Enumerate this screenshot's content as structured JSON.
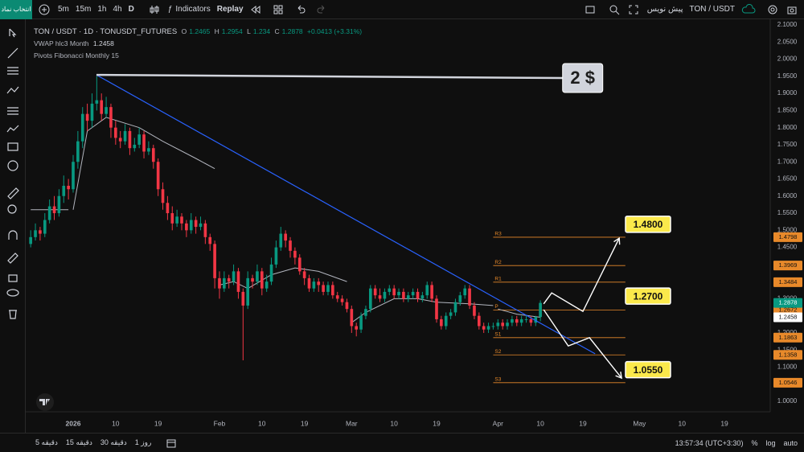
{
  "toolbar": {
    "symbol_button": "انتخاب نماد",
    "intervals": [
      "5m",
      "15m",
      "1h",
      "4h",
      "D"
    ],
    "indicators": "Indicators",
    "replay": "Replay",
    "symbol": "TON / USDT",
    "draft": "پیش نویس"
  },
  "bottom_bar": {
    "intervals": [
      "5 دقیقه",
      "15 دقیقه",
      "30 دقیقه",
      "1 روز"
    ],
    "clock": "13:57:34 (UTC+3:30)",
    "percent": "%",
    "log": "log",
    "auto": "auto"
  },
  "chart_data": {
    "type": "candlestick",
    "title": "TON / USDT · 1D · TONUSDT_FUTURES",
    "ohlc_keys": [
      "O",
      "H",
      "L",
      "C"
    ],
    "change": "+0.0413 (+3.31%)",
    "up_color": "#089981",
    "down_color": "#f23645",
    "candles": [
      [
        -9,
        1.46,
        1.5,
        1.45,
        1.48
      ],
      [
        -8,
        1.48,
        1.52,
        1.47,
        1.5
      ],
      [
        -7,
        1.5,
        1.51,
        1.47,
        1.49
      ],
      [
        -6,
        1.49,
        1.55,
        1.48,
        1.53
      ],
      [
        -5,
        1.53,
        1.59,
        1.52,
        1.57
      ],
      [
        -4,
        1.57,
        1.6,
        1.53,
        1.55
      ],
      [
        -3,
        1.55,
        1.62,
        1.54,
        1.6
      ],
      [
        -2,
        1.6,
        1.66,
        1.58,
        1.63
      ],
      [
        -1,
        1.63,
        1.65,
        1.59,
        1.62
      ],
      [
        0,
        1.62,
        1.72,
        1.61,
        1.7
      ],
      [
        1,
        1.7,
        1.79,
        1.68,
        1.76
      ],
      [
        2,
        1.76,
        1.86,
        1.74,
        1.84
      ],
      [
        3,
        1.84,
        1.87,
        1.79,
        1.82
      ],
      [
        4,
        1.82,
        1.9,
        1.8,
        1.87
      ],
      [
        5,
        1.87,
        1.95,
        1.85,
        1.88
      ],
      [
        6,
        1.88,
        1.9,
        1.82,
        1.84
      ],
      [
        7,
        1.84,
        1.89,
        1.83,
        1.86
      ],
      [
        8,
        1.86,
        1.87,
        1.77,
        1.8
      ],
      [
        9,
        1.8,
        1.82,
        1.75,
        1.77
      ],
      [
        10,
        1.77,
        1.79,
        1.74,
        1.76
      ],
      [
        11,
        1.76,
        1.81,
        1.75,
        1.79
      ],
      [
        12,
        1.79,
        1.8,
        1.72,
        1.74
      ],
      [
        13,
        1.74,
        1.77,
        1.73,
        1.75
      ],
      [
        14,
        1.75,
        1.8,
        1.74,
        1.78
      ],
      [
        15,
        1.78,
        1.79,
        1.71,
        1.73
      ],
      [
        16,
        1.73,
        1.76,
        1.72,
        1.74
      ],
      [
        17,
        1.74,
        1.75,
        1.68,
        1.7
      ],
      [
        18,
        1.7,
        1.71,
        1.6,
        1.62
      ],
      [
        19,
        1.62,
        1.64,
        1.56,
        1.58
      ],
      [
        20,
        1.58,
        1.6,
        1.53,
        1.55
      ],
      [
        21,
        1.55,
        1.57,
        1.5,
        1.52
      ],
      [
        22,
        1.52,
        1.56,
        1.51,
        1.54
      ],
      [
        23,
        1.54,
        1.55,
        1.5,
        1.52
      ],
      [
        24,
        1.52,
        1.53,
        1.48,
        1.5
      ],
      [
        25,
        1.5,
        1.55,
        1.49,
        1.53
      ],
      [
        26,
        1.53,
        1.54,
        1.49,
        1.51
      ],
      [
        27,
        1.51,
        1.54,
        1.5,
        1.52
      ],
      [
        28,
        1.52,
        1.53,
        1.46,
        1.48
      ],
      [
        29,
        1.48,
        1.49,
        1.44,
        1.46
      ],
      [
        30,
        1.46,
        1.47,
        1.33,
        1.36
      ],
      [
        31,
        1.36,
        1.38,
        1.3,
        1.33
      ],
      [
        32,
        1.33,
        1.38,
        1.32,
        1.36
      ],
      [
        33,
        1.36,
        1.37,
        1.33,
        1.35
      ],
      [
        34,
        1.35,
        1.4,
        1.34,
        1.38
      ],
      [
        35,
        1.38,
        1.39,
        1.3,
        1.32
      ],
      [
        36,
        1.32,
        1.33,
        1.12,
        1.28
      ],
      [
        37,
        1.28,
        1.38,
        1.27,
        1.36
      ],
      [
        38,
        1.36,
        1.37,
        1.33,
        1.35
      ],
      [
        39,
        1.35,
        1.4,
        1.34,
        1.38
      ],
      [
        40,
        1.38,
        1.39,
        1.31,
        1.33
      ],
      [
        41,
        1.33,
        1.37,
        1.32,
        1.35
      ],
      [
        42,
        1.35,
        1.42,
        1.34,
        1.4
      ],
      [
        43,
        1.4,
        1.47,
        1.39,
        1.45
      ],
      [
        44,
        1.45,
        1.51,
        1.44,
        1.49
      ],
      [
        45,
        1.49,
        1.5,
        1.45,
        1.47
      ],
      [
        46,
        1.47,
        1.48,
        1.42,
        1.44
      ],
      [
        47,
        1.44,
        1.45,
        1.4,
        1.42
      ],
      [
        48,
        1.42,
        1.43,
        1.37,
        1.38
      ],
      [
        49,
        1.38,
        1.39,
        1.34,
        1.36
      ],
      [
        50,
        1.36,
        1.37,
        1.32,
        1.33
      ],
      [
        51,
        1.33,
        1.36,
        1.32,
        1.35
      ],
      [
        52,
        1.35,
        1.36,
        1.32,
        1.34
      ],
      [
        53,
        1.34,
        1.35,
        1.31,
        1.32
      ],
      [
        54,
        1.32,
        1.35,
        1.31,
        1.34
      ],
      [
        55,
        1.34,
        1.35,
        1.3,
        1.31
      ],
      [
        56,
        1.31,
        1.32,
        1.29,
        1.3
      ],
      [
        57,
        1.3,
        1.31,
        1.28,
        1.29
      ],
      [
        58,
        1.29,
        1.3,
        1.26,
        1.27
      ],
      [
        59,
        1.27,
        1.28,
        1.2,
        1.22
      ],
      [
        60,
        1.22,
        1.23,
        1.19,
        1.21
      ],
      [
        61,
        1.21,
        1.26,
        1.2,
        1.25
      ],
      [
        62,
        1.25,
        1.28,
        1.24,
        1.27
      ],
      [
        63,
        1.27,
        1.34,
        1.26,
        1.33
      ],
      [
        64,
        1.33,
        1.34,
        1.3,
        1.31
      ],
      [
        65,
        1.31,
        1.33,
        1.29,
        1.3
      ],
      [
        66,
        1.3,
        1.33,
        1.29,
        1.32
      ],
      [
        67,
        1.32,
        1.34,
        1.31,
        1.33
      ],
      [
        68,
        1.33,
        1.34,
        1.3,
        1.31
      ],
      [
        69,
        1.31,
        1.33,
        1.3,
        1.32
      ],
      [
        70,
        1.32,
        1.33,
        1.29,
        1.3
      ],
      [
        71,
        1.3,
        1.32,
        1.29,
        1.31
      ],
      [
        72,
        1.31,
        1.33,
        1.3,
        1.32
      ],
      [
        73,
        1.32,
        1.33,
        1.29,
        1.3
      ],
      [
        74,
        1.3,
        1.32,
        1.29,
        1.31
      ],
      [
        75,
        1.31,
        1.35,
        1.3,
        1.34
      ],
      [
        76,
        1.34,
        1.35,
        1.29,
        1.3
      ],
      [
        77,
        1.3,
        1.31,
        1.23,
        1.24
      ],
      [
        78,
        1.24,
        1.25,
        1.21,
        1.22
      ],
      [
        79,
        1.22,
        1.26,
        1.21,
        1.25
      ],
      [
        80,
        1.25,
        1.27,
        1.24,
        1.26
      ],
      [
        81,
        1.26,
        1.3,
        1.25,
        1.29
      ],
      [
        82,
        1.29,
        1.32,
        1.28,
        1.31
      ],
      [
        83,
        1.31,
        1.34,
        1.3,
        1.33
      ],
      [
        84,
        1.33,
        1.34,
        1.27,
        1.28
      ],
      [
        85,
        1.28,
        1.29,
        1.24,
        1.25
      ],
      [
        86,
        1.25,
        1.26,
        1.21,
        1.22
      ],
      [
        87,
        1.22,
        1.23,
        1.2,
        1.21
      ],
      [
        88,
        1.21,
        1.23,
        1.2,
        1.22
      ],
      [
        89,
        1.22,
        1.23,
        1.21,
        1.22
      ],
      [
        90,
        1.22,
        1.24,
        1.21,
        1.23
      ],
      [
        91,
        1.23,
        1.24,
        1.21,
        1.22
      ],
      [
        92,
        1.22,
        1.24,
        1.21,
        1.23
      ],
      [
        93,
        1.23,
        1.25,
        1.22,
        1.24
      ],
      [
        94,
        1.24,
        1.25,
        1.22,
        1.23
      ],
      [
        95,
        1.23,
        1.25,
        1.22,
        1.24
      ],
      [
        96,
        1.24,
        1.25,
        1.23,
        1.24
      ],
      [
        97,
        1.24,
        1.25,
        1.22,
        1.23
      ],
      [
        98,
        1.23,
        1.25,
        1.22,
        1.2465
      ],
      [
        99,
        1.2465,
        1.2954,
        1.234,
        1.2878
      ]
    ],
    "xlim": [
      -10.05,
      147.7
    ],
    "xticks": [
      {
        "value": 0,
        "label": "2026"
      },
      {
        "value": 9,
        "label": "10"
      },
      {
        "value": 18,
        "label": "19"
      },
      {
        "value": 31,
        "label": "Feb"
      },
      {
        "value": 40,
        "label": "10"
      },
      {
        "value": 49,
        "label": "19"
      },
      {
        "value": 59,
        "label": "Mar"
      },
      {
        "value": 68,
        "label": "10"
      },
      {
        "value": 77,
        "label": "19"
      },
      {
        "value": 90,
        "label": "Apr"
      },
      {
        "value": 99,
        "label": "10"
      },
      {
        "value": 108,
        "label": "19"
      },
      {
        "value": 120,
        "label": "May"
      },
      {
        "value": 129,
        "label": "10"
      },
      {
        "value": 138,
        "label": "19"
      }
    ],
    "ylim": [
      0.9696,
      2.1165
    ],
    "yticks": [
      {
        "value": 1.0,
        "label": "1.0000"
      },
      {
        "value": 1.05,
        "label": "1.0500"
      },
      {
        "value": 1.1,
        "label": "1.1000"
      },
      {
        "value": 1.15,
        "label": "1.1500"
      },
      {
        "value": 1.2,
        "label": "1.2000"
      },
      {
        "value": 1.25,
        "label": "1.2500"
      },
      {
        "value": 1.3,
        "label": "1.3000"
      },
      {
        "value": 1.35,
        "label": "1.3500"
      },
      {
        "value": 1.4,
        "label": "1.4000"
      },
      {
        "value": 1.45,
        "label": "1.4500"
      },
      {
        "value": 1.5,
        "label": "1.5000"
      },
      {
        "value": 1.55,
        "label": "1.5500"
      },
      {
        "value": 1.6,
        "label": "1.6000"
      },
      {
        "value": 1.65,
        "label": "1.6500"
      },
      {
        "value": 1.7,
        "label": "1.7000"
      },
      {
        "value": 1.75,
        "label": "1.7500"
      },
      {
        "value": 1.8,
        "label": "1.8000"
      },
      {
        "value": 1.85,
        "label": "1.8500"
      },
      {
        "value": 1.9,
        "label": "1.9000"
      },
      {
        "value": 1.95,
        "label": "1.9500"
      },
      {
        "value": 2.0,
        "label": "2.0000"
      },
      {
        "value": 2.05,
        "label": "2.0500"
      },
      {
        "value": 2.1,
        "label": "2.1000"
      }
    ],
    "grid": false,
    "vwap": {
      "name": "VWAP hlc3 Month",
      "color": "#b2b5be",
      "x": [
        -9,
        -1,
        null,
        0,
        3,
        7,
        14,
        19,
        26,
        30,
        null,
        31,
        34,
        37,
        42,
        47,
        52,
        58,
        null,
        59,
        62,
        68,
        73,
        77,
        84,
        89,
        null,
        90,
        94,
        99
      ],
      "values": [
        1.56,
        1.56,
        null,
        1.56,
        1.79,
        1.83,
        1.8,
        1.76,
        1.71,
        1.68,
        null,
        1.34,
        1.35,
        1.33,
        1.37,
        1.39,
        1.38,
        1.35,
        null,
        1.23,
        1.26,
        1.3,
        1.3,
        1.29,
        1.285,
        1.28,
        null,
        1.27,
        1.255,
        1.2458
      ]
    },
    "pivots": {
      "name": "Pivots Fibonacci Monthly 15",
      "color": "#e8892a",
      "x": [
        89,
        117
      ],
      "levels": [
        {
          "name": "R3",
          "value": 1.4798
        },
        {
          "name": "R2",
          "value": 1.3969
        },
        {
          "name": "R1",
          "value": 1.3484
        },
        {
          "name": "P",
          "value": 1.2672
        },
        {
          "name": "S1",
          "value": 1.1863
        },
        {
          "name": "S2",
          "value": 1.1358
        },
        {
          "name": "S3",
          "value": 1.0546
        }
      ]
    },
    "trendline": {
      "color": "#2962ff",
      "x": [
        4.9,
        110.6
      ],
      "values": [
        1.954,
        1.139
      ]
    },
    "callout": {
      "text": "2 $",
      "color": "#d1d4dc",
      "x": [
        4.94,
        103.7
      ],
      "values": [
        1.954,
        1.945
      ]
    },
    "paths": [
      {
        "color": "#ffffff",
        "x": [
          99.7,
          101.4,
          108,
          115.7
        ],
        "values": [
          1.285,
          1.317,
          1.263,
          1.477
        ]
      },
      {
        "color": "#ffffff",
        "x": [
          99.7,
          104.9,
          109.4,
          116.2
        ],
        "values": [
          1.268,
          1.162,
          1.186,
          1.068
        ]
      }
    ],
    "targets": [
      {
        "value": 1.48,
        "label": "1.4800"
      },
      {
        "value": 1.27,
        "label": "1.2700"
      },
      {
        "value": 1.055,
        "label": "1.0550"
      }
    ]
  }
}
